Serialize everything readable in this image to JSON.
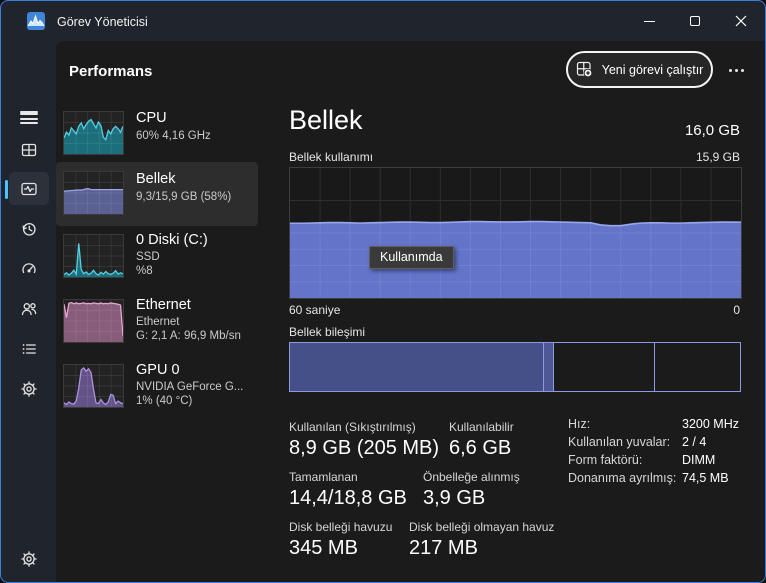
{
  "titlebar": {
    "title": "Görev Yöneticisi"
  },
  "accent": {
    "selection_pill": "#4cc2ff",
    "window_border": "#3c7edb",
    "focus_ring": "#f5f5f5"
  },
  "header": {
    "title": "Performans",
    "run_task_label": "Yeni görevi çalıştır"
  },
  "sidebar": {
    "items": [
      {
        "name": "CPU",
        "line2": "60% 4,16 GHz",
        "spark": {
          "fill": "#1a9db3",
          "line": "#54cfe3",
          "values": [
            38,
            52,
            45,
            62,
            55,
            48,
            66,
            74,
            60,
            70,
            78,
            82,
            72,
            62,
            76,
            68,
            40,
            34,
            56,
            48,
            60,
            66,
            60,
            52,
            66
          ]
        }
      },
      {
        "name": "Bellek",
        "line2": "9,3/15,9 GB (58%)",
        "selected": true,
        "spark": {
          "fill": "#7b87d6",
          "line": "#9aa5e8",
          "values": [
            54,
            55,
            55,
            56,
            56,
            57,
            57,
            57,
            58,
            60,
            60,
            58,
            58,
            58,
            58,
            58,
            58,
            58,
            58,
            58,
            58,
            58,
            58,
            58,
            58
          ]
        }
      },
      {
        "name": "0 Diski (C:)",
        "line2": "SSD",
        "line3": "%8",
        "spark": {
          "fill": "#1a9db3",
          "line": "#54cfe3",
          "values": [
            6,
            10,
            5,
            9,
            16,
            7,
            80,
            18,
            8,
            12,
            6,
            9,
            16,
            8,
            5,
            11,
            7,
            13,
            8,
            6,
            9,
            15,
            7,
            10,
            8
          ]
        }
      },
      {
        "name": "Ethernet",
        "line2": "Ethernet",
        "line3": "G: 2,1 A: 96,9 Mb/sn",
        "spark": {
          "fill": "#c77fb2",
          "line": "#e8a6d2",
          "values": [
            90,
            58,
            92,
            94,
            91,
            93,
            91,
            92,
            93,
            91,
            92,
            91,
            93,
            92,
            91,
            93,
            91,
            92,
            91,
            93,
            92,
            91,
            90,
            88,
            14
          ]
        }
      },
      {
        "name": "GPU 0",
        "line2": "NVIDIA GeForce G...",
        "line3": "1% (40 °C)",
        "spark": {
          "fill": "#8a6fc2",
          "line": "#ab91e0",
          "values": [
            10,
            6,
            12,
            8,
            7,
            15,
            45,
            88,
            93,
            85,
            91,
            82,
            42,
            10,
            8,
            18,
            10,
            6,
            12,
            30,
            28,
            8,
            14,
            10,
            8
          ]
        }
      }
    ]
  },
  "main": {
    "title": "Bellek",
    "capacity": "16,0 GB",
    "usage_label": "Bellek kullanımı",
    "usage_scale_max": "15,9 GB",
    "x_left": "60 saniye",
    "x_right": "0",
    "tooltip": "Kullanımda",
    "composition_label": "Bellek bileşimi",
    "stats": [
      {
        "label": "Kullanılan (Sıkıştırılmış)",
        "value": "8,9 GB (205 MB)"
      },
      {
        "label": "Kullanılabilir",
        "value": "6,6 GB"
      },
      {
        "label": "Tamamlanan",
        "value": "14,4/18,8 GB"
      },
      {
        "label": "Önbelleğe alınmış",
        "value": "3,9 GB"
      },
      {
        "label": "Disk belleği havuzu",
        "value": "345 MB"
      },
      {
        "label": "Disk belleği olmayan havuz",
        "value": "217 MB"
      }
    ],
    "details": [
      {
        "label": "Hız:",
        "value": "3200 MHz"
      },
      {
        "label": "Kullanılan yuvalar:",
        "value": "2 / 4"
      },
      {
        "label": "Form faktörü:",
        "value": "DIMM"
      },
      {
        "label": "Donanıma ayrılmış:",
        "value": "74,5 MB"
      }
    ]
  },
  "chart_data": [
    {
      "type": "area",
      "title": "Bellek kullanımı",
      "x_axis": {
        "left_label": "60 saniye",
        "right_label": "0",
        "span_seconds": 60
      },
      "y_axis": {
        "min": 0,
        "max_label": "15,9 GB"
      },
      "series_unit": "percent_of_total",
      "values": [
        57.5,
        57.5,
        57.6,
        57.8,
        58,
        58,
        57.8,
        57.6,
        57.8,
        58,
        58.2,
        58.4,
        58.4,
        58.2,
        58,
        58,
        58.2,
        58.5,
        58.8,
        58.8,
        58.6,
        58.5,
        58.5,
        58.6,
        58.8,
        58.8,
        58.6,
        58.4,
        58.2,
        58,
        57.8,
        56.2,
        55.6,
        55.6,
        56.8,
        57.6,
        57.8,
        57.8,
        57.6,
        57.6,
        57.8,
        58,
        58.2,
        58.4,
        58.4,
        58.3
      ],
      "fill": "#6474c9",
      "line": "#9aa6ec",
      "grid": true,
      "legend": "Kullanımda"
    },
    {
      "type": "stacked-bar",
      "title": "Bellek bileşimi",
      "border": "#8c9ae2",
      "segments": [
        {
          "name": "in-use",
          "width_pct": 56.4,
          "fill": "#454f88"
        },
        {
          "name": "modified",
          "width_pct": 2.2,
          "fill": "#4d5894"
        },
        {
          "name": "standby",
          "width_pct": 22.6,
          "fill": "none"
        },
        {
          "name": "free",
          "width_pct": 18.8,
          "fill": "none"
        }
      ]
    }
  ]
}
